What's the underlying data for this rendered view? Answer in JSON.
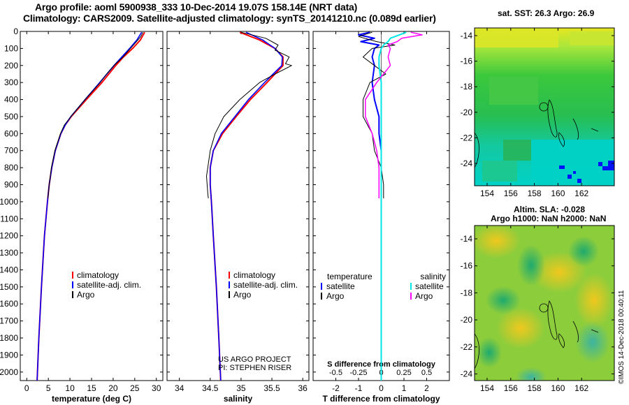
{
  "title_line1": "Argo profile: aoml 5900938_333 10-Dec-2014 19.07S 158.14E (NRT data)",
  "title_line2": "Climatology: CARS2009. Satellite-adjusted climatology: synTS_20141210.nc (0.089d earlier)",
  "map1_title": "sat. SST: 26.3 Argo: 26.9",
  "map2_title_line1": "Altim. SLA: -0.028",
  "map2_title_line2": "Argo h1000: NaN h2000: NaN",
  "credit_line1": "US ARGO PROJECT",
  "credit_line2": "PI: STEPHEN RISER",
  "timestamp": "©IMOS 14-Dec-2018 00:40:11",
  "colors": {
    "climatology": "#ff0000",
    "satellite": "#0000ff",
    "argo": "#000000",
    "sat_salinity": "#00e5e5",
    "argo_salinity": "#ff00ff"
  },
  "chart_data": [
    {
      "type": "line",
      "xlabel": "temperature (deg C)",
      "ylim": [
        2050,
        0
      ],
      "xlim": [
        -1.5,
        31.5
      ],
      "xticks": [
        0,
        5,
        10,
        15,
        20,
        25,
        30
      ],
      "yticks": [
        0,
        100,
        200,
        300,
        400,
        500,
        600,
        700,
        800,
        900,
        1000,
        1100,
        1200,
        1300,
        1400,
        1500,
        1600,
        1700,
        1800,
        1900,
        2000
      ],
      "legend": [
        "climatology",
        "satellite-adj. clim.",
        "Argo"
      ],
      "series": [
        {
          "name": "climatology",
          "depth": [
            5,
            50,
            100,
            150,
            200,
            300,
            400,
            500,
            550,
            600,
            700,
            800,
            900,
            1000,
            1200,
            1500,
            1800,
            2050
          ],
          "values": [
            27.3,
            26.3,
            24.5,
            22.4,
            20.6,
            17.4,
            13.8,
            10.3,
            8.9,
            7.9,
            6.6,
            5.8,
            5.2,
            4.8,
            4.1,
            3.4,
            2.8,
            2.4
          ]
        },
        {
          "name": "satellite-adj. clim.",
          "depth": [
            5,
            50,
            100,
            150,
            200,
            300,
            400,
            500,
            550,
            600,
            700,
            800,
            900,
            1000,
            1200,
            1500,
            1800,
            2050
          ],
          "values": [
            26.6,
            25.5,
            23.8,
            22.0,
            20.2,
            16.9,
            13.5,
            10.2,
            8.9,
            7.9,
            6.6,
            5.8,
            5.2,
            4.8,
            4.1,
            3.4,
            2.8,
            2.4
          ]
        },
        {
          "name": "Argo",
          "depth": [
            5,
            30,
            60,
            100,
            150,
            200,
            250,
            300,
            400,
            500,
            550,
            600,
            700,
            800,
            900,
            980
          ],
          "values": [
            26.9,
            26.4,
            25.4,
            24.0,
            22.3,
            20.2,
            18.5,
            17.0,
            13.5,
            10.2,
            8.7,
            7.8,
            6.5,
            5.7,
            5.2,
            4.9
          ]
        }
      ]
    },
    {
      "type": "line",
      "xlabel": "salinity",
      "ylim": [
        2050,
        0
      ],
      "xlim": [
        33.8,
        36.1
      ],
      "xticks": [
        34,
        34.5,
        35,
        35.5,
        36
      ],
      "legend": [
        "climatology",
        "satellite-adj. clim.",
        "Argo"
      ],
      "series": [
        {
          "name": "climatology",
          "depth": [
            5,
            50,
            100,
            150,
            200,
            250,
            300,
            400,
            500,
            600,
            700,
            800,
            900,
            1000,
            1200,
            1500,
            1800,
            2050
          ],
          "values": [
            34.98,
            35.3,
            35.55,
            35.68,
            35.68,
            35.55,
            35.42,
            35.15,
            34.92,
            34.7,
            34.55,
            34.5,
            34.5,
            34.52,
            34.55,
            34.6,
            34.64,
            34.67
          ]
        },
        {
          "name": "satellite-adj. clim.",
          "depth": [
            5,
            50,
            100,
            150,
            200,
            250,
            300,
            400,
            500,
            600,
            700,
            800,
            900,
            1000,
            1200,
            1500,
            1800,
            2050
          ],
          "values": [
            35.08,
            35.35,
            35.55,
            35.67,
            35.66,
            35.52,
            35.38,
            35.12,
            34.9,
            34.68,
            34.55,
            34.5,
            34.5,
            34.52,
            34.55,
            34.6,
            34.64,
            34.67
          ]
        },
        {
          "name": "Argo",
          "depth": [
            5,
            40,
            80,
            110,
            150,
            190,
            200,
            250,
            300,
            400,
            500,
            600,
            700,
            800,
            850,
            900,
            950,
            980
          ],
          "values": [
            35.0,
            35.4,
            35.6,
            35.55,
            35.78,
            35.72,
            35.82,
            35.55,
            35.3,
            34.98,
            34.72,
            34.58,
            34.5,
            34.46,
            34.44,
            34.45,
            34.46,
            34.47
          ]
        }
      ]
    },
    {
      "type": "line",
      "xlabel": "T difference from climatology",
      "top_xlabel": "S difference from climatology",
      "ylim": [
        2050,
        0
      ],
      "xlim": [
        -3,
        3
      ],
      "xticks": [
        -2,
        -1,
        0,
        1,
        2
      ],
      "top_xticks": [
        "-0.5",
        "-0.25",
        "0",
        "0.25",
        "0.5"
      ],
      "top_xtick_pos": [
        -2,
        -1,
        0,
        1,
        2
      ],
      "legend_temperature_title": "temperature",
      "legend_salinity_title": "salinity",
      "legend": [
        "satellite",
        "Argo",
        "satellite",
        "Argo"
      ],
      "series": [
        {
          "name": "satellite",
          "depth": [
            5,
            20,
            40,
            60,
            80,
            100,
            150,
            200,
            300,
            400,
            500,
            600,
            700,
            800,
            1000,
            2050
          ],
          "values": [
            -0.5,
            -1.0,
            -0.3,
            -0.9,
            -0.1,
            -0.3,
            -0.4,
            -0.3,
            -0.4,
            -0.3,
            -0.1,
            -0.1,
            0,
            0,
            0,
            0
          ]
        },
        {
          "name": "Argo",
          "depth": [
            5,
            30,
            60,
            80,
            100,
            150,
            200,
            250,
            300,
            400,
            500,
            600,
            700,
            800,
            900,
            980
          ],
          "values": [
            -0.4,
            -1.0,
            -0.2,
            0.6,
            -0.4,
            -0.8,
            -0.3,
            0.2,
            -0.5,
            -0.8,
            -0.8,
            -0.4,
            -0.3,
            0,
            0.1,
            0.1
          ]
        },
        {
          "name": "satellite",
          "depth": [
            5,
            20,
            40,
            60,
            80,
            100,
            150,
            200,
            300,
            400,
            600,
            800,
            1000,
            2050
          ],
          "values": [
            1.1,
            0.8,
            0.4,
            0.3,
            0.1,
            0,
            -0.1,
            -0.1,
            0,
            0,
            0,
            0,
            0,
            0
          ]
        },
        {
          "name": "Argo",
          "depth": [
            5,
            20,
            40,
            60,
            80,
            100,
            150,
            200,
            300,
            400,
            500,
            600,
            700,
            800,
            900,
            980
          ],
          "values": [
            1.3,
            1.8,
            0.9,
            0.7,
            0.3,
            0.4,
            0.3,
            0.4,
            -0.2,
            -0.7,
            -0.7,
            -0.4,
            -0.2,
            -0.1,
            -0.1,
            -0.1
          ]
        }
      ]
    },
    {
      "type": "heatmap",
      "xticks": [
        154,
        156,
        158,
        160,
        162
      ],
      "yticks": [
        -14,
        -16,
        -18,
        -20,
        -22,
        -24
      ]
    },
    {
      "type": "heatmap",
      "xticks": [
        154,
        156,
        158,
        160,
        162
      ],
      "yticks": [
        -14,
        -16,
        -18,
        -20,
        -22,
        -24
      ]
    }
  ]
}
